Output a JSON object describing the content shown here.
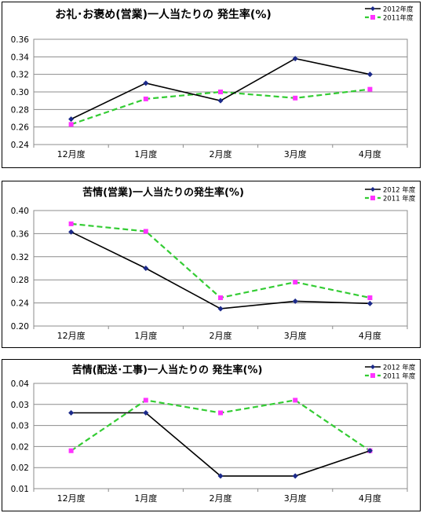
{
  "colors": {
    "s2012": "#000000",
    "s2012_marker": "#1c2a8a",
    "s2011": "#33cc33",
    "s2011_marker": "#ff33ff",
    "grid": "#8c8c8c"
  },
  "chart_data": [
    {
      "type": "line",
      "title": "お礼･お褒め(営業)一人当たりの 発生率(%)",
      "categories": [
        "12月度",
        "1月度",
        "2月度",
        "3月度",
        "4月度"
      ],
      "yticks": [
        "0.24",
        "0.26",
        "0.28",
        "0.30",
        "0.32",
        "0.34",
        "0.36"
      ],
      "ylim": [
        0.24,
        0.36
      ],
      "grid": true,
      "legend_position": "top-right",
      "series": [
        {
          "name": "2012年度",
          "values": [
            0.269,
            0.31,
            0.29,
            0.338,
            0.32
          ]
        },
        {
          "name": "2011年度",
          "values": [
            0.263,
            0.292,
            0.3,
            0.293,
            0.303
          ]
        }
      ]
    },
    {
      "type": "line",
      "title": "苦情(営業)一人当たりの発生率(%)",
      "categories": [
        "12月度",
        "1月度",
        "2月度",
        "3月度",
        "4月度"
      ],
      "yticks": [
        "0.20",
        "0.24",
        "0.28",
        "0.32",
        "0.36",
        "0.40"
      ],
      "ylim": [
        0.2,
        0.4
      ],
      "grid": true,
      "legend_position": "top-right",
      "series": [
        {
          "name": "2012 年度",
          "values": [
            0.363,
            0.3,
            0.23,
            0.243,
            0.239
          ]
        },
        {
          "name": "2011 年度",
          "values": [
            0.377,
            0.364,
            0.249,
            0.276,
            0.249
          ]
        }
      ]
    },
    {
      "type": "line",
      "title": "苦情(配送･工事)一人当たりの 発生率(%)",
      "categories": [
        "12月度",
        "1月度",
        "2月度",
        "3月度",
        "4月度"
      ],
      "yticks": [
        "0.01",
        "0.02",
        "0.02",
        "0.03",
        "0.03",
        "0.04"
      ],
      "ylim": [
        0.01,
        0.035
      ],
      "grid": true,
      "legend_position": "top-right",
      "series": [
        {
          "name": "2012 年度",
          "values": [
            0.028,
            0.028,
            0.013,
            0.013,
            0.019
          ]
        },
        {
          "name": "2011 年度",
          "values": [
            0.019,
            0.031,
            0.028,
            0.031,
            0.019
          ]
        }
      ]
    }
  ]
}
